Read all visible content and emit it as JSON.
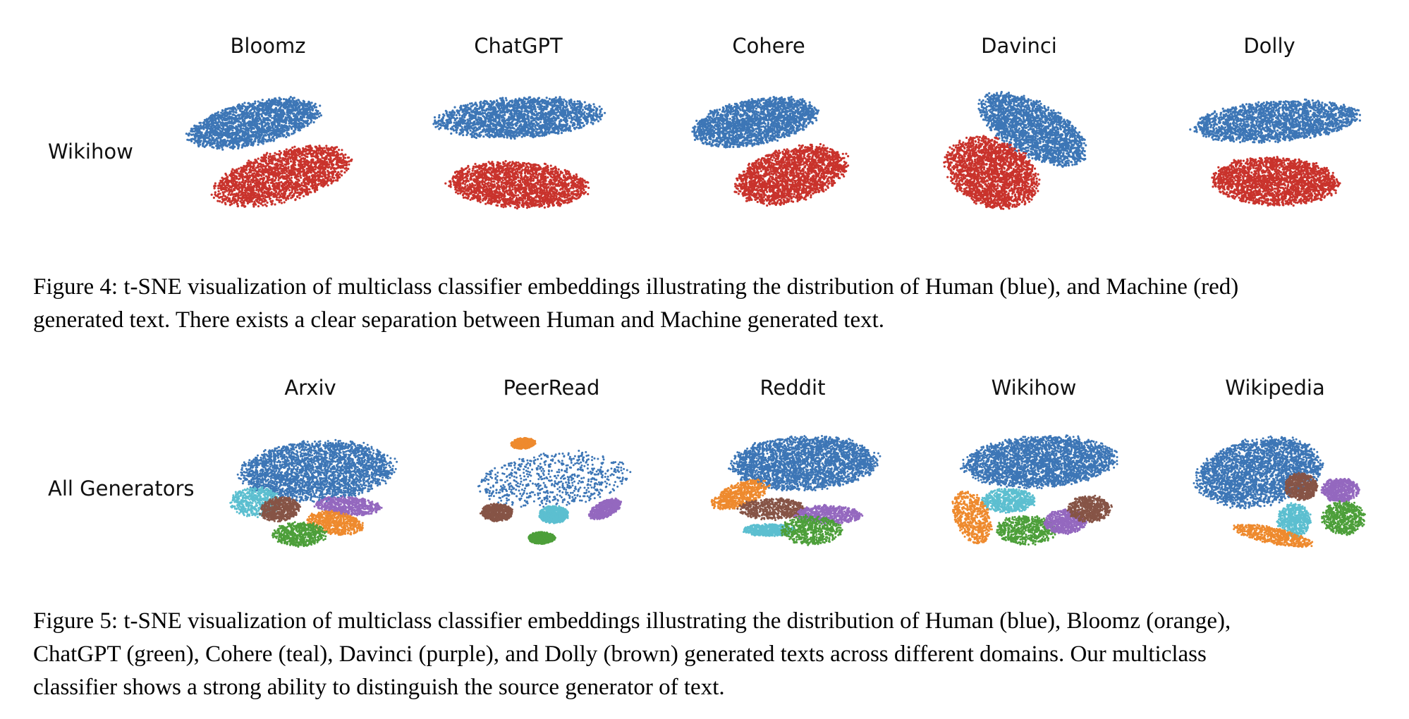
{
  "figure4": {
    "columns": [
      "Bloomz",
      "ChatGPT",
      "Cohere",
      "Davinci",
      "Dolly"
    ],
    "row_label": "Wikihow",
    "caption_lines": [
      "Figure 4: t-SNE visualization of multiclass classifier embeddings illustrating the distribution of Human (blue), and Machine (red)",
      "generated text. There exists a clear separation between Human and Machine generated text."
    ],
    "colors": {
      "human": "#3d76b6",
      "machine": "#c9332c"
    }
  },
  "figure5": {
    "columns": [
      "Arxiv",
      "PeerRead",
      "Reddit",
      "Wikihow",
      "Wikipedia"
    ],
    "row_label": "All Generators",
    "caption_lines": [
      "Figure 5: t-SNE visualization of multiclass classifier embeddings illustrating the distribution of Human (blue), Bloomz (orange),",
      "ChatGPT (green), Cohere (teal), Davinci (purple), and Dolly (brown) generated texts across different domains. Our multiclass",
      "classifier shows a strong ability to distinguish the source generator of text."
    ],
    "colors": {
      "human": "#3d76b6",
      "bloomz": "#ee8a2e",
      "chatgpt": "#4d9f3a",
      "cohere": "#5cbfd0",
      "davinci": "#9468bf",
      "dolly": "#865446"
    }
  }
}
